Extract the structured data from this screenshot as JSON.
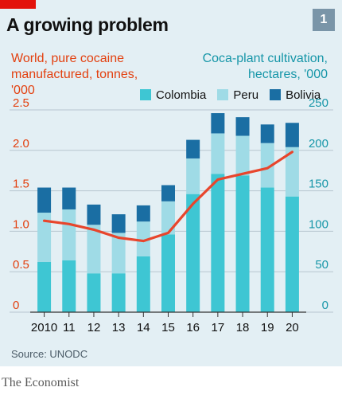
{
  "header": {
    "title": "A growing problem",
    "number": "1"
  },
  "colors": {
    "background": "#e3eff4",
    "colombia": "#3ec6d3",
    "peru": "#9fdbe6",
    "bolivia": "#1a6ea3",
    "cocaine_line": "#e8452c",
    "grid": "#b7c6cf",
    "left_axis": "#e3400f",
    "right_axis": "#1696a8"
  },
  "chart_data": {
    "type": "bar",
    "title": "A growing problem",
    "left_axis_label": "World, pure cocaine manufactured, tonnes, '000",
    "right_axis_label": "Coca-plant cultivation, hectares, '000",
    "categories": [
      "2010",
      "11",
      "12",
      "13",
      "14",
      "15",
      "16",
      "17",
      "18",
      "19",
      "20"
    ],
    "left_ticks": [
      "0",
      "0.5",
      "1.0",
      "1.5",
      "2.0",
      "2.5"
    ],
    "right_ticks": [
      "0",
      "50",
      "100",
      "150",
      "200",
      "250"
    ],
    "left_ylim": [
      0,
      2.5
    ],
    "right_ylim": [
      0,
      250
    ],
    "stack_series": [
      {
        "name": "Colombia",
        "axis": "right",
        "values": [
          62,
          64,
          48,
          48,
          69,
          96,
          146,
          171,
          169,
          154,
          143
        ]
      },
      {
        "name": "Peru",
        "axis": "right",
        "values": [
          61,
          63,
          60,
          50,
          43,
          41,
          44,
          50,
          49,
          55,
          61
        ]
      },
      {
        "name": "Bolivia",
        "axis": "right",
        "values": [
          31,
          27,
          25,
          23,
          20,
          20,
          23,
          25,
          23,
          23,
          30
        ]
      }
    ],
    "line_series": {
      "name": "World, pure cocaine manufactured",
      "axis": "left",
      "values": [
        1.13,
        1.09,
        1.02,
        0.92,
        0.88,
        0.98,
        1.34,
        1.64,
        1.71,
        1.78,
        1.98
      ]
    },
    "grid": true,
    "legend_position": "top-right"
  },
  "legend": [
    {
      "label": "Colombia"
    },
    {
      "label": "Peru"
    },
    {
      "label": "Bolivia"
    }
  ],
  "footer": {
    "source": "Source: UNODC",
    "brand": "The Economist"
  }
}
